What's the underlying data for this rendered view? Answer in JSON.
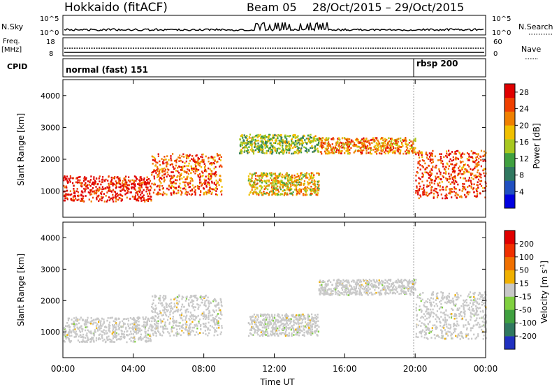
{
  "header": {
    "station": "Hokkaido (fitACF)",
    "beam": "Beam 05",
    "date_range": "28/Oct/2015 – 29/Oct/2015"
  },
  "nsky": {
    "label": "N.Sky",
    "ticks": [
      "10^5",
      "10^0"
    ],
    "right_ticks": [
      "10^5",
      "10^0"
    ],
    "right_label": "N.Search"
  },
  "freq": {
    "label_line1": "Freq.",
    "label_line2": "[MHz]",
    "ticks": [
      "18",
      "8"
    ],
    "right_ticks": [
      "60",
      "0"
    ],
    "right_label": "Nave"
  },
  "cpid": {
    "label": "CPID",
    "segments": [
      {
        "name": "normal (fast) 151",
        "start_hour": 0,
        "end_hour": 20.0
      },
      {
        "name": "rbsp 200",
        "start_hour": 20.0,
        "end_hour": 24
      }
    ]
  },
  "chart_data": [
    {
      "type": "heatmap",
      "panel": "power",
      "ylabel": "Slant Range [km]",
      "yticks": [
        1000,
        2000,
        3000,
        4000
      ],
      "ylim": [
        180,
        4500
      ],
      "xlim": [
        0,
        24
      ],
      "colorbar": {
        "label": "Power [dB]",
        "ticks": [
          "4",
          "8",
          "12",
          "16",
          "20",
          "24",
          "28"
        ],
        "range": [
          0,
          30
        ],
        "colors": [
          "#0000e0",
          "#2050c0",
          "#307860",
          "#40a040",
          "#a8c820",
          "#f0c000",
          "#f08000",
          "#f04000",
          "#e00000"
        ]
      },
      "regions": [
        {
          "x0": 0.0,
          "x1": 5.0,
          "y0": 700,
          "y1": 1500,
          "level": 28
        },
        {
          "x0": 5.0,
          "x1": 9.0,
          "y0": 900,
          "y1": 2200,
          "level": 24
        },
        {
          "x0": 10.5,
          "x1": 14.5,
          "y0": 900,
          "y1": 1600,
          "level": 18
        },
        {
          "x0": 10.0,
          "x1": 14.5,
          "y0": 2200,
          "y1": 2800,
          "level": 14
        },
        {
          "x0": 14.5,
          "x1": 20.0,
          "y0": 2200,
          "y1": 2700,
          "level": 22
        },
        {
          "x0": 20.0,
          "x1": 24.0,
          "y0": 800,
          "y1": 2300,
          "level": 26
        }
      ]
    },
    {
      "type": "heatmap",
      "panel": "velocity",
      "ylabel": "Slant Range [km]",
      "xlabel": "Time UT",
      "yticks": [
        1000,
        2000,
        3000,
        4000
      ],
      "ylim": [
        180,
        4500
      ],
      "xlim": [
        0,
        24
      ],
      "xticks": [
        "00:00",
        "04:00",
        "08:00",
        "12:00",
        "16:00",
        "20:00",
        "00:00"
      ],
      "colorbar": {
        "label": "Velocity [m s^-1]",
        "ticks": [
          "200",
          "100",
          "50",
          "15",
          "-15",
          "-50",
          "-100",
          "-200"
        ],
        "range": [
          -250,
          250
        ],
        "colors": [
          "#2030c0",
          "#307860",
          "#40a040",
          "#80d040",
          "#c8c8c8",
          "#f0b000",
          "#f07000",
          "#f03000",
          "#e00000"
        ]
      },
      "regions": [
        {
          "x0": 0.0,
          "x1": 5.0,
          "y0": 700,
          "y1": 1500,
          "level": 0
        },
        {
          "x0": 5.0,
          "x1": 9.0,
          "y0": 900,
          "y1": 2200,
          "level": 0
        },
        {
          "x0": 10.5,
          "x1": 14.5,
          "y0": 900,
          "y1": 1600,
          "level": 0
        },
        {
          "x0": 14.5,
          "x1": 20.0,
          "y0": 2200,
          "y1": 2700,
          "level": 0
        },
        {
          "x0": 20.0,
          "x1": 24.0,
          "y0": 800,
          "y1": 2300,
          "level": 0
        }
      ]
    }
  ]
}
